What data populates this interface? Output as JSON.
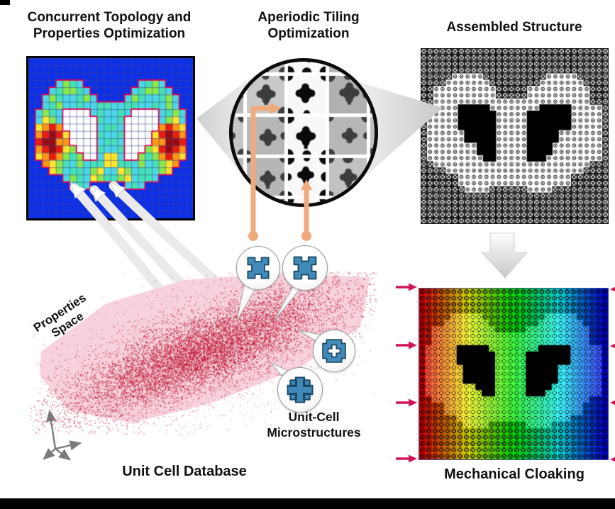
{
  "page": {
    "background": "#ffffff",
    "footer_bar_color": "#000000"
  },
  "panels": {
    "topology": {
      "title": "Concurrent Topology and\nProperties Optimization"
    },
    "tiling": {
      "title": "Aperiodic Tiling\nOptimization"
    },
    "assembled": {
      "title": "Assembled Structure"
    },
    "database": {
      "caption": "Unit Cell Database",
      "properties_space_label": "Properties\nSpace",
      "unit_cell_label": "Unit-Cell\nMicrostructures"
    },
    "cloaking": {
      "caption": "Mechanical Cloaking"
    }
  },
  "figures": {
    "topology_heatmap": {
      "bitmap": [
        "........................",
        "........................",
        "........................",
        "....cgtc........ctgc....",
        "...ctggtc......ctggtc...",
        "..cgtcctgc....cgtcctgc..",
        "..ctgcctccttccttcctcgc..",
        ".cgtcwwwwctcctcwwwwctgc.",
        ".cygcwwwwwtcctwwwwwcgyc.",
        ".yorowwwwwcttcwwwwworoy.",
        ".ordrywwwwtcctwwwwyrdro.",
        ".rddoowwwwcttcwwwwooddr.",
        ".ordrygwwwtcctwwwgyrdro.",
        ".yorogtgwwcyycwwgtgoroy.",
        "..oygtcgcttyyttcgctgyo..",
        "...ygcttcgyccygcttcgy...",
        ".....cgtcygttgycttc.....",
        "......ctc.....ctc.......",
        "........................",
        "........................",
        "........................",
        "........................"
      ],
      "palette": {
        ".": "#0d2fe8",
        "c": "#4cd7e6",
        "t": "#45e0b8",
        "g": "#8ae84f",
        "y": "#ffe52e",
        "o": "#ff9614",
        "r": "#ea1c0d",
        "d": "#960b12",
        "w": "#ffffff"
      },
      "grid_line": "#3c4a86",
      "outline": "#e8004f"
    },
    "scatter": {
      "point_color": "#be1233",
      "hull_color": "#f7d2dc"
    },
    "tiling_lens": {
      "tile_light": "#f8f8f8",
      "blob_dark": "#3d3d3d",
      "blob_black": "#0b0b0b",
      "gap": "#ffffff"
    },
    "cloak": {
      "hue_start": 0,
      "hue_end": 240
    },
    "colors": {
      "swoosh": "#eaeaea",
      "funnel": "#d9d9d9",
      "orange_arrow": "#f0aa7b",
      "pink_arrow": "#d4145a",
      "axes": "#7b7b7b",
      "unit_fill": "#4089b8",
      "unit_stroke": "#1c4a66",
      "lattice": "#0a0a0a"
    }
  }
}
